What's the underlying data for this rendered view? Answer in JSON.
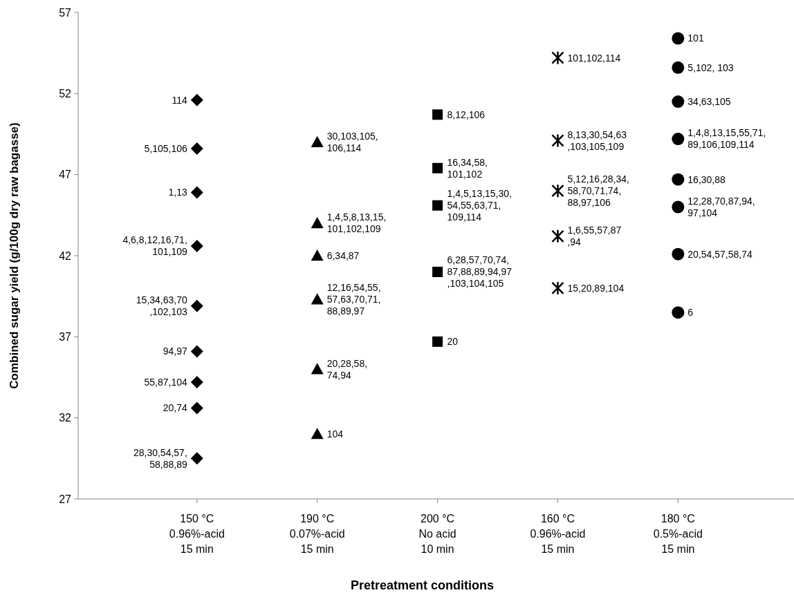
{
  "chart_data": {
    "type": "scatter",
    "xlabel": "Pretreatment conditions",
    "ylabel": "Combined sugar yield (g/100g dry raw bagasse)",
    "categories": [
      "150 °C\n0.96%-acid\n15 min",
      "190 °C\n0.07%-acid\n15 min",
      "200 °C\nNo acid\n10 min",
      "160 °C\n0.96%-acid\n15 min",
      "180 °C\n0.5%-acid\n15 min"
    ],
    "ylim": [
      27,
      57
    ],
    "yticks": [
      27,
      32,
      37,
      42,
      47,
      52,
      57
    ],
    "series": [
      {
        "color": "#000000",
        "marker": "diamond",
        "x": [
          "150 °C\n0.96%-acid\n15 min",
          "150 °C\n0.96%-acid\n15 min",
          "150 °C\n0.96%-acid\n15 min",
          "150 °C\n0.96%-acid\n15 min",
          "150 °C\n0.96%-acid\n15 min",
          "150 °C\n0.96%-acid\n15 min",
          "150 °C\n0.96%-acid\n15 min",
          "150 °C\n0.96%-acid\n15 min",
          "150 °C\n0.96%-acid\n15 min"
        ],
        "values": [
          51.6,
          48.6,
          45.9,
          42.6,
          38.9,
          36.1,
          34.2,
          32.6,
          29.5
        ]
      },
      {
        "color": "#000000",
        "marker": "triangle",
        "x": [
          "190 °C\n0.07%-acid\n15 min",
          "190 °C\n0.07%-acid\n15 min",
          "190 °C\n0.07%-acid\n15 min",
          "190 °C\n0.07%-acid\n15 min",
          "190 °C\n0.07%-acid\n15 min",
          "190 °C\n0.07%-acid\n15 min"
        ],
        "values": [
          49.0,
          44.0,
          42.0,
          39.3,
          35.0,
          31.0
        ]
      },
      {
        "color": "#000000",
        "marker": "square",
        "x": [
          "200 °C\nNo acid\n10 min",
          "200 °C\nNo acid\n10 min",
          "200 °C\nNo acid\n10 min",
          "200 °C\nNo acid\n10 min",
          "200 °C\nNo acid\n10 min"
        ],
        "values": [
          50.7,
          47.4,
          45.1,
          41.0,
          36.7
        ]
      },
      {
        "color": "#000000",
        "marker": "cross",
        "x": [
          "160 °C\n0.96%-acid\n15 min",
          "160 °C\n0.96%-acid\n15 min",
          "160 °C\n0.96%-acid\n15 min",
          "160 °C\n0.96%-acid\n15 min",
          "160 °C\n0.96%-acid\n15 min"
        ],
        "values": [
          54.2,
          49.1,
          46.0,
          43.2,
          40.0
        ]
      },
      {
        "color": "#000000",
        "marker": "circle",
        "x": [
          "180 °C\n0.5%-acid\n15 min",
          "180 °C\n0.5%-acid\n15 min",
          "180 °C\n0.5%-acid\n15 min",
          "180 °C\n0.5%-acid\n15 min",
          "180 °C\n0.5%-acid\n15 min",
          "180 °C\n0.5%-acid\n15 min",
          "180 °C\n0.5%-acid\n15 min",
          "180 °C\n0.5%-acid\n15 min"
        ],
        "values": [
          55.4,
          53.6,
          51.5,
          49.2,
          46.7,
          45.0,
          42.1,
          38.5
        ]
      }
    ],
    "annotations": [
      {
        "text": "114",
        "x": "150 °C\n0.96%-acid\n15 min",
        "y": 51.6
      },
      {
        "text": "5,105,106",
        "x": "150 °C\n0.96%-acid\n15 min",
        "y": 48.6
      },
      {
        "text": "1,13",
        "x": "150 °C\n0.96%-acid\n15 min",
        "y": 45.9
      },
      {
        "text": "4,6,8,12,16,71,\n101,109",
        "x": "150 °C\n0.96%-acid\n15 min",
        "y": 42.6
      },
      {
        "text": "15,34,63,70\n,102,103",
        "x": "150 °C\n0.96%-acid\n15 min",
        "y": 38.9
      },
      {
        "text": "94,97",
        "x": "150 °C\n0.96%-acid\n15 min",
        "y": 36.1
      },
      {
        "text": "55,87,104",
        "x": "150 °C\n0.96%-acid\n15 min",
        "y": 34.2
      },
      {
        "text": "20,74",
        "x": "150 °C\n0.96%-acid\n15 min",
        "y": 32.6
      },
      {
        "text": "28,30,54,57,\n58,88,89",
        "x": "150 °C\n0.96%-acid\n15 min",
        "y": 29.5
      },
      {
        "text": "30,103,105,\n106,114",
        "x": "190 °C\n0.07%-acid\n15 min",
        "y": 49.0
      },
      {
        "text": "1,4,5,8,13,15,\n101,102,109",
        "x": "190 °C\n0.07%-acid\n15 min",
        "y": 44.0
      },
      {
        "text": "6,34,87",
        "x": "190 °C\n0.07%-acid\n15 min",
        "y": 42.0
      },
      {
        "text": "12,16,54,55,\n57,63,70,71,\n88,89,97",
        "x": "190 °C\n0.07%-acid\n15 min",
        "y": 39.3
      },
      {
        "text": "20,28,58,\n74,94",
        "x": "190 °C\n0.07%-acid\n15 min",
        "y": 35.0
      },
      {
        "text": "104",
        "x": "190 °C\n0.07%-acid\n15 min",
        "y": 31.0
      },
      {
        "text": "8,12,106",
        "x": "200 °C\nNo acid\n10 min",
        "y": 50.7
      },
      {
        "text": "16,34,58,\n101,102",
        "x": "200 °C\nNo acid\n10 min",
        "y": 47.4
      },
      {
        "text": "1,4,5,13,15,30,\n54,55,63,71,\n109,114",
        "x": "200 °C\nNo acid\n10 min",
        "y": 45.1
      },
      {
        "text": "6,28,57,70,74,\n87,88,89,94,97\n,103,104,105",
        "x": "200 °C\nNo acid\n10 min",
        "y": 41.0
      },
      {
        "text": "20",
        "x": "200 °C\nNo acid\n10 min",
        "y": 36.7
      },
      {
        "text": "101,102,114",
        "x": "160 °C\n0.96%-acid\n15 min",
        "y": 54.2
      },
      {
        "text": "8,13,30,54,63\n,103,105,109",
        "x": "160 °C\n0.96%-acid\n15 min",
        "y": 49.1
      },
      {
        "text": "5,12,16,28,34,\n58,70,71,74,\n88,97,106",
        "x": "160 °C\n0.96%-acid\n15 min",
        "y": 46.0
      },
      {
        "text": "1,6,55,57,87\n,94",
        "x": "160 °C\n0.96%-acid\n15 min",
        "y": 43.2
      },
      {
        "text": "15,20,89,104",
        "x": "160 °C\n0.96%-acid\n15 min",
        "y": 40.0
      },
      {
        "text": "101",
        "x": "180 °C\n0.5%-acid\n15 min",
        "y": 55.4
      },
      {
        "text": "5,102, 103",
        "x": "180 °C\n0.5%-acid\n15 min",
        "y": 53.6
      },
      {
        "text": "34,63,105",
        "x": "180 °C\n0.5%-acid\n15 min",
        "y": 51.5
      },
      {
        "text": "1,4,8,13,15,55,71,\n89,106,109,114",
        "x": "180 °C\n0.5%-acid\n15 min",
        "y": 49.2
      },
      {
        "text": "16,30,88",
        "x": "180 °C\n0.5%-acid\n15 min",
        "y": 46.7
      },
      {
        "text": "12,28,70,87,94,\n97,104",
        "x": "180 °C\n0.5%-acid\n15 min",
        "y": 45.0
      },
      {
        "text": "20,54,57,58,74",
        "x": "180 °C\n0.5%-acid\n15 min",
        "y": 42.1
      },
      {
        "text": "6",
        "x": "180 °C\n0.5%-acid\n15 min",
        "y": 38.5
      }
    ]
  }
}
